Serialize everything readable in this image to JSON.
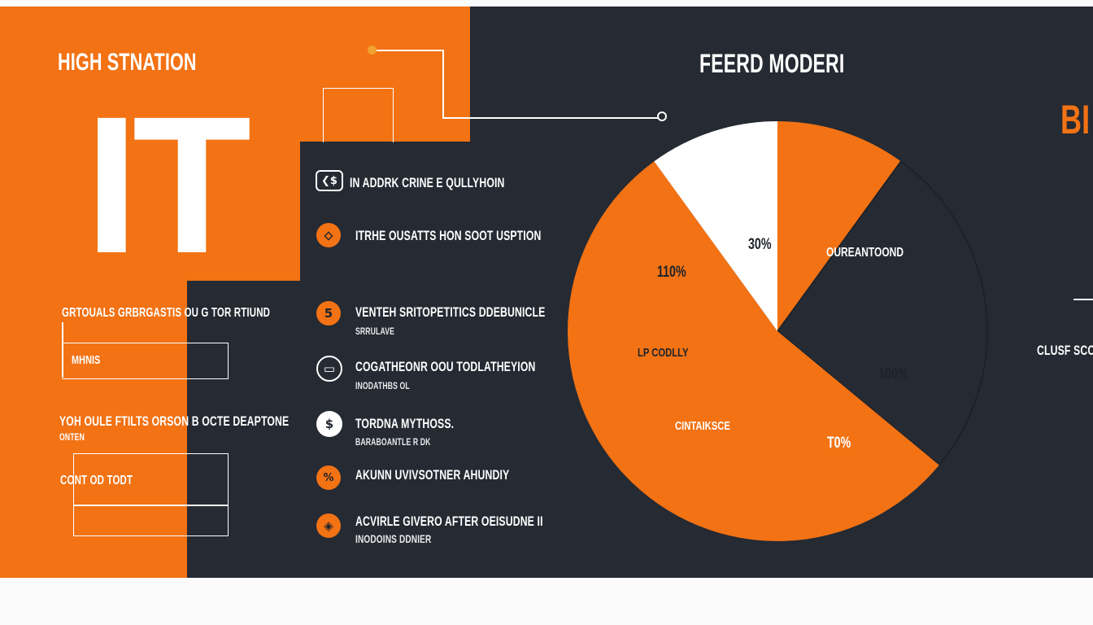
{
  "header": {
    "left_title": "HIGH STNATION",
    "big_mark": "IT",
    "right_title": "FEERD MODERI",
    "edge_word": "BI"
  },
  "left_panel": {
    "label_1": "GRTOUALS GRBRGASTIS OU G TOR RTIUND",
    "box_1_text": "MHNIS",
    "label_2": "YOH OULE FTILTS ORSON B OCTE DEAPTONE",
    "label_2_sub": "ONTEN",
    "label_3": "CONT OD TODT"
  },
  "list": [
    {
      "icon": "wallet-icon",
      "glyph": "❮$",
      "title": "IN ADDRK CRINE E QULLYHOIN",
      "sub": ""
    },
    {
      "icon": "location-pin-icon",
      "glyph": "⬦",
      "title": "ITRHE OUSATTS HON SOOT USPTION",
      "sub": ""
    },
    {
      "icon": "number-five-icon",
      "glyph": "5",
      "title": "VENTEH SRITOPETITICS DDEBUNICLE",
      "sub": "SRRULAVE"
    },
    {
      "icon": "monitor-icon",
      "glyph": "▭",
      "title": "COGATHEONR OOU TODLATHEYION",
      "sub": "INODATHBS OL"
    },
    {
      "icon": "dollar-coin-icon",
      "glyph": "$",
      "title": "TORDNA MYTHOSS.",
      "sub": "BARABOANTLE R DK"
    },
    {
      "icon": "percent-icon",
      "glyph": "%",
      "title": "AKUNN UVIVSOTNER AHUNDIY",
      "sub": ""
    },
    {
      "icon": "shield-icon",
      "glyph": "◈",
      "title": "ACVIRLE GIVERO AFTER OEISUDNE II",
      "sub": "INODOINS DDNIER"
    }
  ],
  "right_side": {
    "label": "CLUSF SCOG"
  },
  "colors": {
    "accent": "#f27214",
    "background": "#252a33",
    "white": "#ffffff"
  },
  "chart_data": {
    "type": "pie",
    "slices": [
      {
        "label": "",
        "value": 10,
        "color": "#f27214"
      },
      {
        "label": "OUREANTOOND",
        "value": 26,
        "color": "#252a33"
      },
      {
        "label": "",
        "value": 54,
        "color": "#f27214"
      },
      {
        "label": "",
        "value": 10,
        "color": "#ffffff"
      }
    ],
    "annotations": [
      {
        "text": "30%"
      },
      {
        "text": "110%"
      },
      {
        "text": "LP CODLLY"
      },
      {
        "text": "100%"
      },
      {
        "text": "CINTAIKSCE"
      },
      {
        "text": "T0%"
      }
    ]
  }
}
